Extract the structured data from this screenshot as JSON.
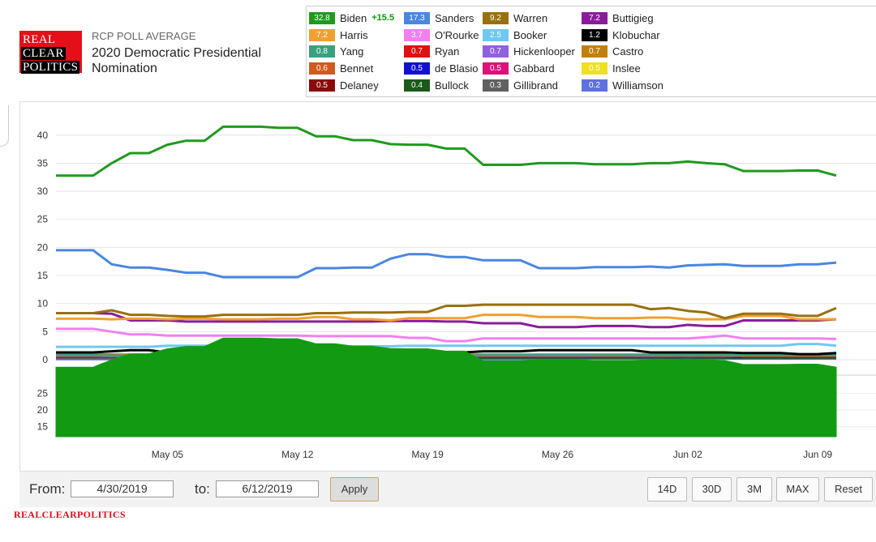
{
  "header": {
    "logo_lines": [
      "REAL",
      "CLEAR",
      "POLITICS"
    ],
    "rcp_label": "RCP POLL AVERAGE",
    "title": "2020 Democratic Presidential Nomination"
  },
  "legend": [
    {
      "name": "Biden",
      "value": "32.8",
      "color": "#1f9a1f",
      "lead": "+15.5"
    },
    {
      "name": "Sanders",
      "value": "17.3",
      "color": "#4a86e0"
    },
    {
      "name": "Warren",
      "value": "9.2",
      "color": "#98700f"
    },
    {
      "name": "Buttigieg",
      "value": "7.2",
      "color": "#8a1c9a"
    },
    {
      "name": "Harris",
      "value": "7.2",
      "color": "#f0a030"
    },
    {
      "name": "O'Rourke",
      "value": "3.7",
      "color": "#f080f0"
    },
    {
      "name": "Booker",
      "value": "2.5",
      "color": "#70c8f0"
    },
    {
      "name": "Klobuchar",
      "value": "1.2",
      "color": "#000000"
    },
    {
      "name": "Yang",
      "value": "0.8",
      "color": "#3aa080"
    },
    {
      "name": "Ryan",
      "value": "0.7",
      "color": "#e01010"
    },
    {
      "name": "Hickenlooper",
      "value": "0.7",
      "color": "#9060e0"
    },
    {
      "name": "Castro",
      "value": "0.7",
      "color": "#c08010"
    },
    {
      "name": "Bennet",
      "value": "0.6",
      "color": "#d05a20"
    },
    {
      "name": "de Blasio",
      "value": "0.5",
      "color": "#1010d0"
    },
    {
      "name": "Gabbard",
      "value": "0.5",
      "color": "#e0107a"
    },
    {
      "name": "Inslee",
      "value": "0.5",
      "color": "#f0e020"
    },
    {
      "name": "Delaney",
      "value": "0.5",
      "color": "#8a0a0a"
    },
    {
      "name": "Bullock",
      "value": "0.4",
      "color": "#1a5a1a"
    },
    {
      "name": "Gillibrand",
      "value": "0.3",
      "color": "#606060"
    },
    {
      "name": "Williamson",
      "value": "0.2",
      "color": "#6070e0"
    }
  ],
  "chart_data": {
    "type": "line",
    "title": "2020 Democratic Presidential Nomination",
    "xlabel": "",
    "ylabel": "",
    "ylim": [
      0,
      43
    ],
    "yticks": [
      0,
      5,
      10,
      15,
      20,
      25,
      30,
      35,
      40
    ],
    "x_tick_labels": [
      {
        "label": "May 05",
        "index": 6
      },
      {
        "label": "May 12",
        "index": 13
      },
      {
        "label": "May 19",
        "index": 20
      },
      {
        "label": "May 26",
        "index": 27
      },
      {
        "label": "Jun 02",
        "index": 34
      },
      {
        "label": "Jun 09",
        "index": 41
      }
    ],
    "x_start": "4/30/2019",
    "x_end": "6/12/2019",
    "series": [
      {
        "name": "Biden",
        "color": "#1f9a1f",
        "values": [
          32.8,
          32.8,
          32.8,
          35,
          36.8,
          36.8,
          38.3,
          39,
          39,
          41.5,
          41.5,
          41.5,
          41.3,
          41.3,
          39.8,
          39.8,
          39.1,
          39.1,
          38.4,
          38.3,
          38.3,
          37.6,
          37.6,
          34.7,
          34.7,
          34.7,
          35,
          35,
          35,
          34.8,
          34.8,
          34.8,
          35,
          35,
          35.3,
          35,
          34.8,
          33.6,
          33.6,
          33.6,
          33.7,
          33.7,
          32.8
        ]
      },
      {
        "name": "Sanders",
        "color": "#4a86e0",
        "values": [
          19.5,
          19.5,
          19.5,
          17,
          16.4,
          16.4,
          16,
          15.5,
          15.5,
          14.7,
          14.7,
          14.7,
          14.7,
          14.7,
          16.3,
          16.3,
          16.4,
          16.4,
          18,
          18.8,
          18.8,
          18.3,
          18.3,
          17.7,
          17.7,
          17.7,
          16.3,
          16.3,
          16.3,
          16.5,
          16.5,
          16.5,
          16.6,
          16.4,
          16.8,
          16.9,
          17,
          16.7,
          16.7,
          16.7,
          17,
          17,
          17.3
        ]
      },
      {
        "name": "Warren",
        "color": "#98700f",
        "values": [
          8.3,
          8.3,
          8.3,
          8.8,
          8,
          8,
          7.8,
          7.7,
          7.7,
          8,
          8,
          8,
          8,
          8,
          8.3,
          8.3,
          8.4,
          8.4,
          8.4,
          8.5,
          8.5,
          9.6,
          9.6,
          9.8,
          9.8,
          9.8,
          9.8,
          9.8,
          9.8,
          9.8,
          9.8,
          9.8,
          9,
          9.2,
          8.7,
          8.4,
          7.4,
          8.2,
          8.2,
          8.2,
          7.8,
          7.8,
          9.2
        ]
      },
      {
        "name": "Harris",
        "color": "#f0a030",
        "values": [
          7.3,
          7.3,
          7.3,
          7.2,
          7.3,
          7.3,
          7.2,
          7.3,
          7.3,
          7.2,
          7.2,
          7.2,
          7.3,
          7.3,
          7.6,
          7.6,
          7.2,
          7.2,
          7,
          7.4,
          7.4,
          7.4,
          7.4,
          8,
          8,
          8,
          7.6,
          7.6,
          7.6,
          7.4,
          7.4,
          7.4,
          7.5,
          7.5,
          7.2,
          7.2,
          7.2,
          7.8,
          7.8,
          7.8,
          7.2,
          7.2,
          7.2
        ]
      },
      {
        "name": "Buttigieg",
        "color": "#8a1c9a",
        "values": [
          8.3,
          8.3,
          8.3,
          8.2,
          7,
          7,
          7,
          6.8,
          6.8,
          6.8,
          6.8,
          6.8,
          6.8,
          6.8,
          6.8,
          6.8,
          6.8,
          6.8,
          6.9,
          6.9,
          6.9,
          6.8,
          6.8,
          6.5,
          6.5,
          6.5,
          5.8,
          5.8,
          5.8,
          6,
          6,
          6,
          5.8,
          5.8,
          6.2,
          6,
          6,
          7,
          7,
          7,
          7,
          7,
          7.2
        ]
      },
      {
        "name": "O'Rourke",
        "color": "#f080f0",
        "values": [
          5.5,
          5.5,
          5.5,
          5,
          4.5,
          4.5,
          4.3,
          4.3,
          4.3,
          4.3,
          4.3,
          4.3,
          4.3,
          4.3,
          4.2,
          4.2,
          4.2,
          4.2,
          4.2,
          3.9,
          3.9,
          3.3,
          3.3,
          3.8,
          3.8,
          3.8,
          3.8,
          3.8,
          3.8,
          3.8,
          3.8,
          3.8,
          3.8,
          3.8,
          3.8,
          4,
          4.3,
          3.8,
          3.8,
          3.8,
          3.8,
          3.8,
          3.7
        ]
      },
      {
        "name": "Booker",
        "color": "#70c8f0",
        "values": [
          2.3,
          2.3,
          2.3,
          2.3,
          2.3,
          2.3,
          2.5,
          2.5,
          2.5,
          2.5,
          2.5,
          2.5,
          2.5,
          2.5,
          2.3,
          2.3,
          2.4,
          2.4,
          2.4,
          2.5,
          2.5,
          2.5,
          2.5,
          2.5,
          2.5,
          2.5,
          2.5,
          2.5,
          2.5,
          2.5,
          2.5,
          2.5,
          2.5,
          2.5,
          2.5,
          2.5,
          2.5,
          2.5,
          2.5,
          2.5,
          2.8,
          2.8,
          2.5
        ]
      },
      {
        "name": "Klobuchar",
        "color": "#000000",
        "values": [
          1.3,
          1.3,
          1.3,
          1.5,
          1.7,
          1.7,
          1.3,
          1.3,
          1.3,
          1.3,
          1.3,
          1.3,
          1.3,
          1.3,
          1.2,
          1.2,
          1.2,
          1.2,
          1.3,
          1.3,
          1.3,
          1.3,
          1.3,
          1.5,
          1.5,
          1.5,
          1.7,
          1.7,
          1.7,
          1.7,
          1.7,
          1.7,
          1.3,
          1.3,
          1.3,
          1.3,
          1.3,
          1.2,
          1.2,
          1.2,
          1,
          1,
          1.2
        ]
      },
      {
        "name": "Yang",
        "color": "#3aa080",
        "values": [
          0.8,
          0.8,
          0.8,
          0.7,
          0.7,
          0.7,
          0.7,
          0.7,
          0.7,
          0.7,
          0.7,
          0.7,
          0.2,
          0.2,
          0.3,
          0.3,
          0.5,
          0.5,
          0.6,
          0.7,
          0.7,
          0.7,
          0.7,
          0.8,
          0.8,
          0.8,
          0.8,
          0.8,
          0.8,
          0.8,
          0.8,
          0.8,
          0.8,
          0.8,
          0.8,
          0.8,
          0.8,
          0.8,
          0.8,
          0.8,
          0.8,
          0.8,
          0.8
        ]
      },
      {
        "name": "Ryan",
        "color": "#e01010",
        "values": [
          0.7,
          0.7,
          0.7,
          0.7,
          0.7,
          0.7,
          0.7,
          0.7,
          0.7,
          0.7,
          0.7,
          0.7,
          0.7,
          0.7,
          0.7,
          0.7,
          0.7,
          0.7,
          0.7,
          0.7,
          0.7,
          0.7,
          0.7,
          0.7,
          0.7,
          0.7,
          0.7,
          0.7,
          0.7,
          0.7,
          0.7,
          0.7,
          0.7,
          0.7,
          0.7,
          0.7,
          0.7,
          0.7,
          0.7,
          0.7,
          0.7,
          0.7,
          0.7
        ]
      },
      {
        "name": "Hickenlooper",
        "color": "#9060e0",
        "values": [
          0.6,
          0.6,
          0.6,
          0.6,
          0.6,
          0.6,
          0.6,
          0.6,
          0.6,
          0.6,
          0.6,
          0.6,
          0.6,
          0.6,
          0.6,
          0.6,
          0.6,
          0.6,
          0.6,
          0.6,
          0.6,
          0.6,
          0.6,
          0.6,
          0.6,
          0.6,
          0.6,
          0.6,
          0.6,
          0.6,
          0.6,
          0.6,
          0.6,
          0.6,
          0.6,
          0.6,
          0.6,
          0.7,
          0.7,
          0.7,
          0.7,
          0.7,
          0.7
        ]
      },
      {
        "name": "Castro",
        "color": "#c08010",
        "values": [
          0.8,
          0.8,
          0.8,
          0.8,
          0.8,
          0.8,
          0.8,
          0.8,
          0.8,
          0.8,
          0.8,
          0.8,
          0.8,
          0.8,
          0.8,
          0.8,
          0.8,
          0.8,
          0.8,
          0.8,
          0.8,
          0.8,
          0.8,
          0.8,
          0.8,
          0.8,
          0.8,
          0.8,
          0.8,
          0.8,
          0.8,
          0.8,
          0.8,
          0.8,
          0.8,
          0.8,
          0.8,
          0.8,
          0.8,
          0.8,
          0.7,
          0.7,
          0.7
        ]
      },
      {
        "name": "Bennet",
        "color": "#d05a20",
        "values": [
          0.9,
          0.9,
          0.9,
          0.9,
          0.9,
          0.9,
          0.9,
          0.9,
          0.9,
          0.9,
          0.9,
          0.9,
          0.9,
          0.9,
          0.9,
          0.9,
          0.9,
          0.9,
          0.9,
          0.9,
          0.9,
          0.9,
          0.9,
          0.9,
          0.9,
          0.9,
          0.9,
          0.9,
          0.9,
          0.9,
          0.9,
          0.9,
          0.9,
          0.9,
          0.9,
          0.9,
          0.9,
          0.6,
          0.6,
          0.6,
          0.6,
          0.6,
          0.6
        ]
      },
      {
        "name": "de Blasio",
        "color": "#1010d0",
        "values": [
          null,
          null,
          null,
          null,
          null,
          null,
          null,
          null,
          null,
          null,
          null,
          null,
          null,
          null,
          null,
          null,
          null,
          null,
          0.3,
          0.4,
          0.4,
          0.5,
          0.5,
          0.5,
          0.5,
          0.5,
          0.5,
          0.5,
          0.5,
          0.5,
          0.5,
          0.5,
          0.5,
          0.5,
          0.5,
          0.5,
          0.5,
          0.5,
          0.5,
          0.5,
          0.5,
          0.5,
          0.5
        ]
      },
      {
        "name": "Gabbard",
        "color": "#e0107a",
        "values": [
          0.9,
          0.9,
          0.9,
          0.9,
          0.8,
          0.8,
          0.8,
          0.8,
          0.8,
          0.8,
          0.8,
          0.8,
          0.8,
          0.8,
          0.8,
          0.8,
          0.8,
          0.8,
          0.8,
          0.8,
          0.8,
          0.8,
          0.8,
          0.8,
          0.8,
          0.8,
          0.8,
          0.8,
          0.8,
          0.8,
          0.8,
          0.8,
          0.8,
          0.8,
          0.8,
          0.8,
          0.8,
          0.6,
          0.6,
          0.6,
          0.5,
          0.5,
          0.5
        ]
      },
      {
        "name": "Inslee",
        "color": "#f0e020",
        "values": [
          0.7,
          0.7,
          0.7,
          0.7,
          0.7,
          0.7,
          0.7,
          0.7,
          0.7,
          0.7,
          0.7,
          0.7,
          0.7,
          0.7,
          0.7,
          0.7,
          0.7,
          0.7,
          0.7,
          0.7,
          0.7,
          0.7,
          0.7,
          0.7,
          0.7,
          0.7,
          0.7,
          0.7,
          0.7,
          0.7,
          0.7,
          0.7,
          0.7,
          0.7,
          0.7,
          0.7,
          0.7,
          0.5,
          0.5,
          0.5,
          0.5,
          0.5,
          0.5
        ]
      },
      {
        "name": "Delaney",
        "color": "#8a0a0a",
        "values": [
          0.5,
          0.5,
          0.5,
          0.5,
          0.5,
          0.5,
          0.5,
          0.5,
          0.5,
          0.5,
          0.5,
          0.5,
          0.5,
          0.5,
          0.5,
          0.5,
          0.5,
          0.5,
          0.5,
          0.5,
          0.5,
          0.5,
          0.5,
          0.5,
          0.5,
          0.5,
          0.5,
          0.5,
          0.5,
          0.5,
          0.5,
          0.5,
          0.5,
          0.5,
          0.5,
          0.5,
          0.5,
          0.5,
          0.5,
          0.5,
          0.5,
          0.5,
          0.5
        ]
      },
      {
        "name": "Bullock",
        "color": "#1a5a1a",
        "values": [
          null,
          null,
          null,
          null,
          null,
          null,
          null,
          null,
          null,
          null,
          null,
          null,
          0.3,
          0.3,
          0.4,
          0.4,
          0.4,
          0.4,
          0.4,
          0.4,
          0.4,
          0.4,
          0.4,
          0.4,
          0.4,
          0.4,
          0.4,
          0.4,
          0.4,
          0.4,
          0.4,
          0.4,
          0.4,
          0.4,
          0.4,
          0.4,
          0.4,
          0.4,
          0.4,
          0.4,
          0.4,
          0.4,
          0.4
        ]
      },
      {
        "name": "Gillibrand",
        "color": "#606060",
        "values": [
          0.3,
          0.3,
          0.3,
          0.3,
          0.3,
          0.3,
          0.3,
          0.3,
          0.3,
          0.3,
          0.3,
          0.3,
          0.3,
          0.3,
          0.3,
          0.3,
          0.3,
          0.3,
          0.3,
          0.3,
          0.3,
          0.3,
          0.3,
          0.3,
          0.3,
          0.3,
          0.3,
          0.3,
          0.3,
          0.3,
          0.3,
          0.3,
          0.3,
          0.3,
          0.3,
          0.3,
          0.3,
          0.3,
          0.3,
          0.3,
          0.3,
          0.3,
          0.3
        ]
      },
      {
        "name": "Williamson",
        "color": "#6070e0",
        "values": [
          0.1,
          0.1,
          0.1,
          0.1,
          0.1,
          0.1,
          0.1,
          0.1,
          0.1,
          0.1,
          0.1,
          0.1,
          0.1,
          0.1,
          0.1,
          0.1,
          0.1,
          0.1,
          0.1,
          0.1,
          0.1,
          0.1,
          0.1,
          0.1,
          0.1,
          0.1,
          0.1,
          0.1,
          0.2,
          0.2,
          0.2,
          0.2,
          0.2,
          0.2,
          0.2,
          0.2,
          0.2,
          0.2,
          0.2,
          0.2,
          0.2,
          0.2,
          0.2
        ]
      }
    ],
    "navigator": {
      "type": "area",
      "series": "Biden",
      "color": "#139a13",
      "ylim": [
        12,
        28
      ],
      "yticks": [
        15,
        20,
        25
      ]
    }
  },
  "controls": {
    "from_label": "From:",
    "from_value": "4/30/2019",
    "to_label": "to:",
    "to_value": "6/12/2019",
    "apply_label": "Apply",
    "range_buttons": [
      "14D",
      "30D",
      "3M",
      "MAX",
      "Reset"
    ]
  },
  "footer": {
    "brand": "REALCLEARPOLITICS"
  }
}
